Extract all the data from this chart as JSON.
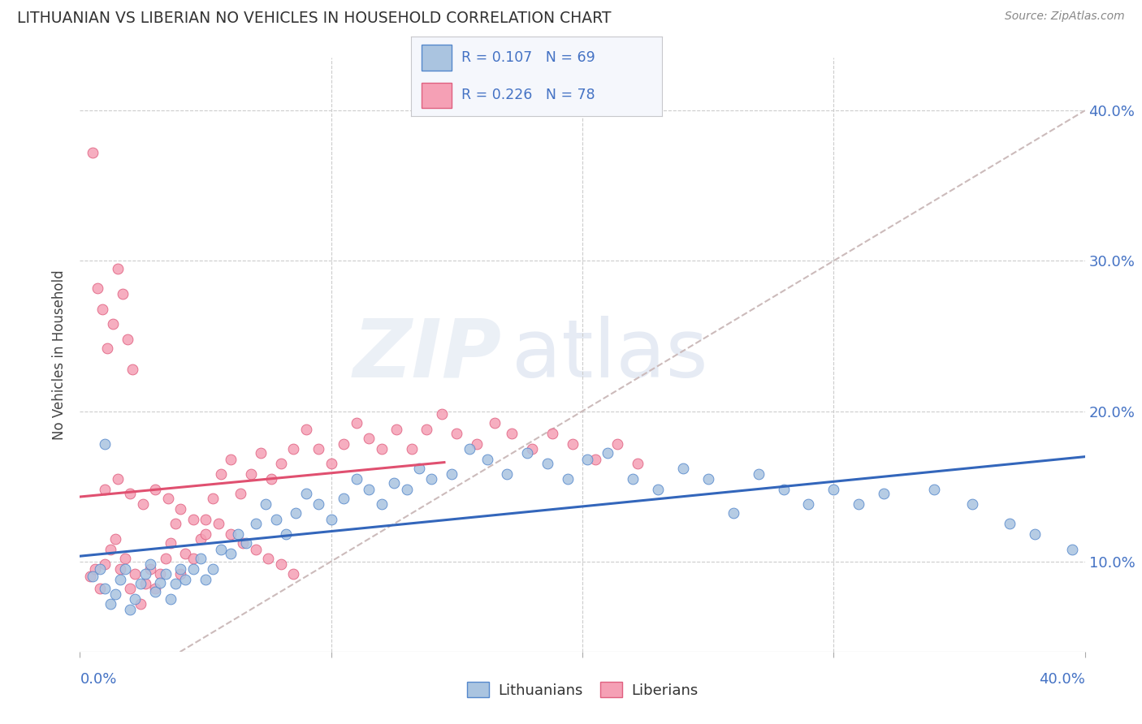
{
  "title": "LITHUANIAN VS LIBERIAN NO VEHICLES IN HOUSEHOLD CORRELATION CHART",
  "source": "Source: ZipAtlas.com",
  "ylabel": "No Vehicles in Household",
  "ylabel_right_vals": [
    0.1,
    0.2,
    0.3,
    0.4
  ],
  "ylabel_right_labels": [
    "10.0%",
    "20.0%",
    "30.0%",
    "40.0%"
  ],
  "xmin": 0.0,
  "xmax": 0.4,
  "ymin": 0.04,
  "ymax": 0.435,
  "watermark_zip": "ZIP",
  "watermark_atlas": "atlas",
  "color_lithuanian": "#aac4e0",
  "color_liberian": "#f5a0b5",
  "edge_lithuanian": "#5588cc",
  "edge_liberian": "#e06080",
  "line_color_lithuanian": "#3366bb",
  "line_color_liberian": "#e05070",
  "trendline_color": "#ccbbbb",
  "background_color": "#ffffff",
  "grid_color": "#cccccc",
  "legend_blue_label": "R = 0.107   N = 69",
  "legend_pink_label": "R = 0.226   N = 78",
  "bottom_legend_lit": "Lithuanians",
  "bottom_legend_lib": "Liberians",
  "lit_x": [
    0.005,
    0.008,
    0.01,
    0.012,
    0.014,
    0.016,
    0.018,
    0.02,
    0.022,
    0.024,
    0.026,
    0.028,
    0.03,
    0.032,
    0.034,
    0.036,
    0.038,
    0.04,
    0.042,
    0.045,
    0.048,
    0.05,
    0.053,
    0.056,
    0.06,
    0.063,
    0.066,
    0.07,
    0.074,
    0.078,
    0.082,
    0.086,
    0.09,
    0.095,
    0.1,
    0.105,
    0.11,
    0.115,
    0.12,
    0.125,
    0.13,
    0.135,
    0.14,
    0.148,
    0.155,
    0.162,
    0.17,
    0.178,
    0.186,
    0.194,
    0.202,
    0.21,
    0.22,
    0.23,
    0.24,
    0.25,
    0.26,
    0.27,
    0.28,
    0.29,
    0.3,
    0.31,
    0.32,
    0.34,
    0.355,
    0.37,
    0.38,
    0.395,
    0.01
  ],
  "lit_y": [
    0.09,
    0.095,
    0.082,
    0.072,
    0.078,
    0.088,
    0.095,
    0.068,
    0.075,
    0.085,
    0.092,
    0.098,
    0.08,
    0.086,
    0.092,
    0.075,
    0.085,
    0.095,
    0.088,
    0.095,
    0.102,
    0.088,
    0.095,
    0.108,
    0.105,
    0.118,
    0.112,
    0.125,
    0.138,
    0.128,
    0.118,
    0.132,
    0.145,
    0.138,
    0.128,
    0.142,
    0.155,
    0.148,
    0.138,
    0.152,
    0.148,
    0.162,
    0.155,
    0.158,
    0.175,
    0.168,
    0.158,
    0.172,
    0.165,
    0.155,
    0.168,
    0.172,
    0.155,
    0.148,
    0.162,
    0.155,
    0.132,
    0.158,
    0.148,
    0.138,
    0.148,
    0.138,
    0.145,
    0.148,
    0.138,
    0.125,
    0.118,
    0.108,
    0.178
  ],
  "lib_x": [
    0.004,
    0.006,
    0.008,
    0.01,
    0.012,
    0.014,
    0.016,
    0.018,
    0.02,
    0.022,
    0.024,
    0.026,
    0.028,
    0.03,
    0.032,
    0.034,
    0.036,
    0.038,
    0.04,
    0.042,
    0.045,
    0.048,
    0.05,
    0.053,
    0.056,
    0.06,
    0.064,
    0.068,
    0.072,
    0.076,
    0.08,
    0.085,
    0.09,
    0.095,
    0.1,
    0.105,
    0.11,
    0.115,
    0.12,
    0.126,
    0.132,
    0.138,
    0.144,
    0.15,
    0.158,
    0.165,
    0.172,
    0.18,
    0.188,
    0.196,
    0.205,
    0.214,
    0.222,
    0.01,
    0.015,
    0.02,
    0.025,
    0.03,
    0.035,
    0.04,
    0.045,
    0.05,
    0.055,
    0.06,
    0.065,
    0.07,
    0.075,
    0.08,
    0.085,
    0.005,
    0.007,
    0.009,
    0.011,
    0.013,
    0.015,
    0.017,
    0.019,
    0.021
  ],
  "lib_y": [
    0.09,
    0.095,
    0.082,
    0.098,
    0.108,
    0.115,
    0.095,
    0.102,
    0.082,
    0.092,
    0.072,
    0.085,
    0.095,
    0.082,
    0.092,
    0.102,
    0.112,
    0.125,
    0.092,
    0.105,
    0.102,
    0.115,
    0.128,
    0.142,
    0.158,
    0.168,
    0.145,
    0.158,
    0.172,
    0.155,
    0.165,
    0.175,
    0.188,
    0.175,
    0.165,
    0.178,
    0.192,
    0.182,
    0.175,
    0.188,
    0.175,
    0.188,
    0.198,
    0.185,
    0.178,
    0.192,
    0.185,
    0.175,
    0.185,
    0.178,
    0.168,
    0.178,
    0.165,
    0.148,
    0.155,
    0.145,
    0.138,
    0.148,
    0.142,
    0.135,
    0.128,
    0.118,
    0.125,
    0.118,
    0.112,
    0.108,
    0.102,
    0.098,
    0.092,
    0.372,
    0.282,
    0.268,
    0.242,
    0.258,
    0.295,
    0.278,
    0.248,
    0.228
  ]
}
